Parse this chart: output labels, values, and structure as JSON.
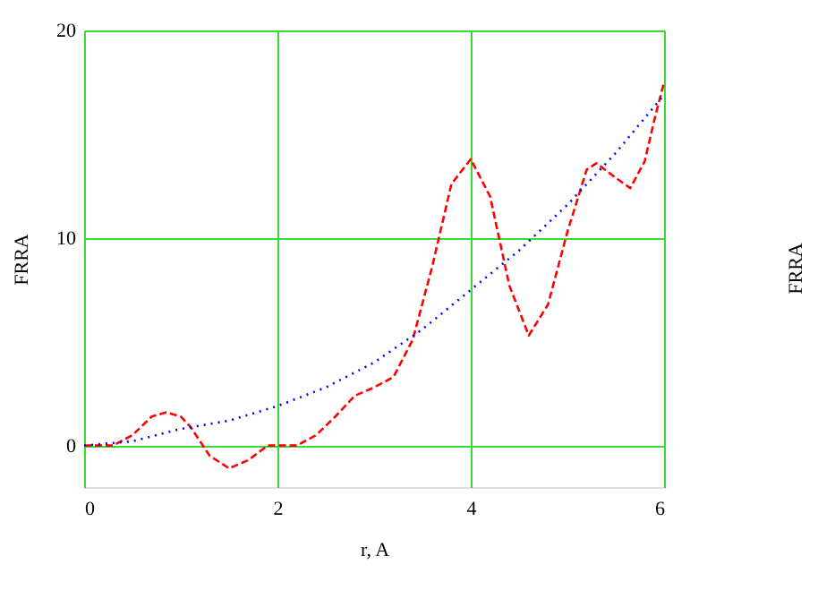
{
  "chart_data": {
    "type": "line",
    "xlabel": "r, A",
    "ylabel": "FRRA",
    "xlim": [
      0,
      6
    ],
    "xticks": [
      0,
      2,
      4,
      6
    ],
    "ylim": [
      -2,
      20
    ],
    "yticks": [
      0,
      10,
      20
    ],
    "grid": true,
    "marker": "none",
    "annotations": [
      "FRRA"
    ],
    "series": [
      {
        "color": "#ff0000",
        "line_style": "dashed",
        "x": [
          0,
          0.3,
          0.5,
          0.7,
          0.85,
          1.0,
          1.1,
          1.2,
          1.3,
          1.5,
          1.7,
          1.9,
          2.0,
          2.2,
          2.4,
          2.6,
          2.8,
          3.0,
          3.2,
          3.4,
          3.6,
          3.8,
          4.0,
          4.2,
          4.4,
          4.6,
          4.8,
          5.0,
          5.2,
          5.3,
          5.5,
          5.65,
          5.8,
          5.9,
          6.0
        ],
        "values": [
          0,
          0,
          0.5,
          1.4,
          1.6,
          1.4,
          0.9,
          0.2,
          -0.5,
          -1.1,
          -0.7,
          0,
          0,
          0,
          0.5,
          1.4,
          2.4,
          2.8,
          3.3,
          5.1,
          8.6,
          12.6,
          13.8,
          12.0,
          7.7,
          5.3,
          6.8,
          10.3,
          13.3,
          13.6,
          12.9,
          12.4,
          13.7,
          15.7,
          17.5
        ]
      },
      {
        "color": "#0000ff",
        "line_style": "dotted",
        "x": [
          0,
          0.5,
          1.0,
          1.5,
          2.0,
          2.5,
          3.0,
          3.5,
          4.0,
          4.5,
          5.0,
          5.5,
          6.0
        ],
        "values": [
          0,
          0.2,
          0.8,
          1.2,
          1.9,
          2.8,
          4.0,
          5.6,
          7.5,
          9.4,
          11.6,
          14.1,
          16.9
        ]
      }
    ]
  }
}
